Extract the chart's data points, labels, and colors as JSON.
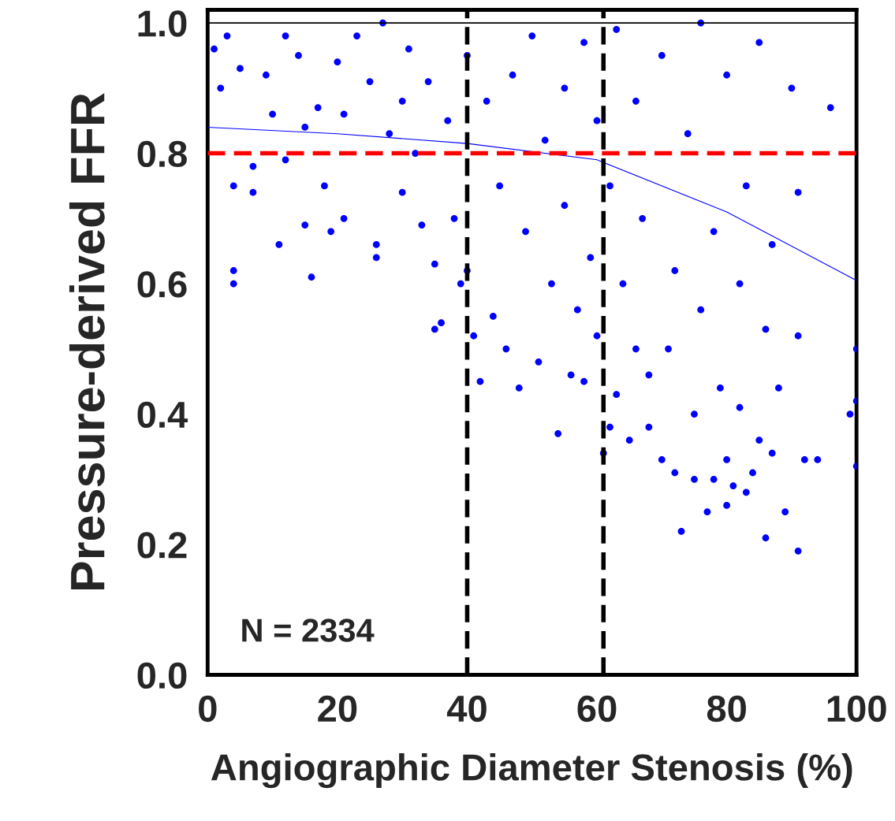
{
  "chart_data": {
    "type": "scatter",
    "xlabel": "Angiographic Diameter Stenosis (%)",
    "ylabel": "Pressure-derived FFR",
    "xlim": [
      0,
      100
    ],
    "ylim": [
      0,
      1.02
    ],
    "xticks": [
      0,
      20,
      40,
      60,
      80,
      100
    ],
    "yticks": [
      {
        "value": 0,
        "label": "0.0"
      },
      {
        "value": 0.2,
        "label": "0.2"
      },
      {
        "value": 0.4,
        "label": "0.4"
      },
      {
        "value": 0.6,
        "label": "0.6"
      },
      {
        "value": 0.8,
        "label": "0.8"
      },
      {
        "value": 1.0,
        "label": "1.0"
      }
    ],
    "grid": false,
    "legend": false,
    "marker": "circle",
    "annotations": [
      "N = 2334"
    ],
    "ref_lines": [
      {
        "axis": "y",
        "value": 0.8,
        "label": null,
        "color": "#ff0000",
        "line_style": "dashed"
      },
      {
        "axis": "x",
        "value": 40,
        "label": null,
        "color": "#000000",
        "line_style": "dashed"
      },
      {
        "axis": "x",
        "value": 61,
        "label": null,
        "color": "#000000",
        "line_style": "dashed"
      },
      {
        "axis": "y",
        "value": 1.0,
        "label": null,
        "color": "#000000",
        "line_style": "solid"
      }
    ],
    "series": [
      {
        "color": "#0000ff",
        "x": [
          1,
          2,
          3,
          4,
          4,
          4,
          5,
          7,
          7,
          9,
          10,
          11,
          12,
          12,
          14,
          15,
          15,
          16,
          17,
          18,
          19,
          20,
          21,
          21,
          23,
          25,
          26,
          26,
          27,
          28,
          30,
          30,
          31,
          32,
          33,
          34,
          35,
          35,
          36,
          37,
          38,
          39,
          40,
          40,
          41,
          42,
          43,
          44,
          45,
          46,
          47,
          48,
          49,
          50,
          51,
          52,
          53,
          54,
          55,
          55,
          56,
          57,
          58,
          58,
          59,
          60,
          60,
          61,
          62,
          62,
          63,
          63,
          64,
          65,
          66,
          66,
          67,
          68,
          68,
          70,
          70,
          71,
          72,
          72,
          73,
          74,
          75,
          75,
          76,
          76,
          77,
          78,
          78,
          79,
          80,
          80,
          80,
          81,
          82,
          82,
          83,
          83,
          84,
          85,
          85,
          86,
          86,
          87,
          87,
          88,
          89,
          90,
          91,
          91,
          91,
          92,
          94,
          96,
          100,
          100,
          100,
          99
        ],
        "values": [
          0.96,
          0.9,
          0.98,
          0.75,
          0.6,
          0.62,
          0.93,
          0.78,
          0.74,
          0.92,
          0.86,
          0.66,
          0.98,
          0.79,
          0.95,
          0.84,
          0.69,
          0.61,
          0.87,
          0.75,
          0.68,
          0.94,
          0.86,
          0.7,
          0.98,
          0.91,
          0.66,
          0.64,
          1.0,
          0.83,
          0.88,
          0.74,
          0.96,
          0.8,
          0.69,
          0.91,
          0.53,
          0.63,
          0.54,
          0.85,
          0.7,
          0.6,
          0.95,
          0.62,
          0.52,
          0.45,
          0.88,
          0.55,
          0.75,
          0.5,
          0.92,
          0.44,
          0.68,
          0.98,
          0.48,
          0.82,
          0.6,
          0.37,
          0.9,
          0.72,
          0.46,
          0.56,
          0.97,
          0.45,
          0.64,
          0.85,
          0.52,
          0.34,
          0.38,
          0.75,
          0.99,
          0.43,
          0.6,
          0.36,
          0.88,
          0.5,
          0.7,
          0.38,
          0.46,
          0.95,
          0.33,
          0.5,
          0.62,
          0.31,
          0.22,
          0.83,
          0.4,
          0.3,
          1.0,
          0.56,
          0.25,
          0.68,
          0.3,
          0.44,
          0.92,
          0.33,
          0.26,
          0.29,
          0.6,
          0.41,
          0.75,
          0.28,
          0.31,
          0.97,
          0.36,
          0.53,
          0.21,
          0.66,
          0.34,
          0.44,
          0.25,
          0.9,
          0.19,
          0.52,
          0.74,
          0.33,
          0.33,
          0.87,
          0.42,
          0.5,
          0.32,
          0.4
        ]
      },
      {
        "type": "line",
        "color": "#0000ff",
        "line_style": "solid",
        "marker": "none",
        "x": [
          0,
          20,
          40,
          60,
          80,
          100
        ],
        "values": [
          0.84,
          0.83,
          0.815,
          0.79,
          0.71,
          0.605
        ]
      }
    ]
  }
}
